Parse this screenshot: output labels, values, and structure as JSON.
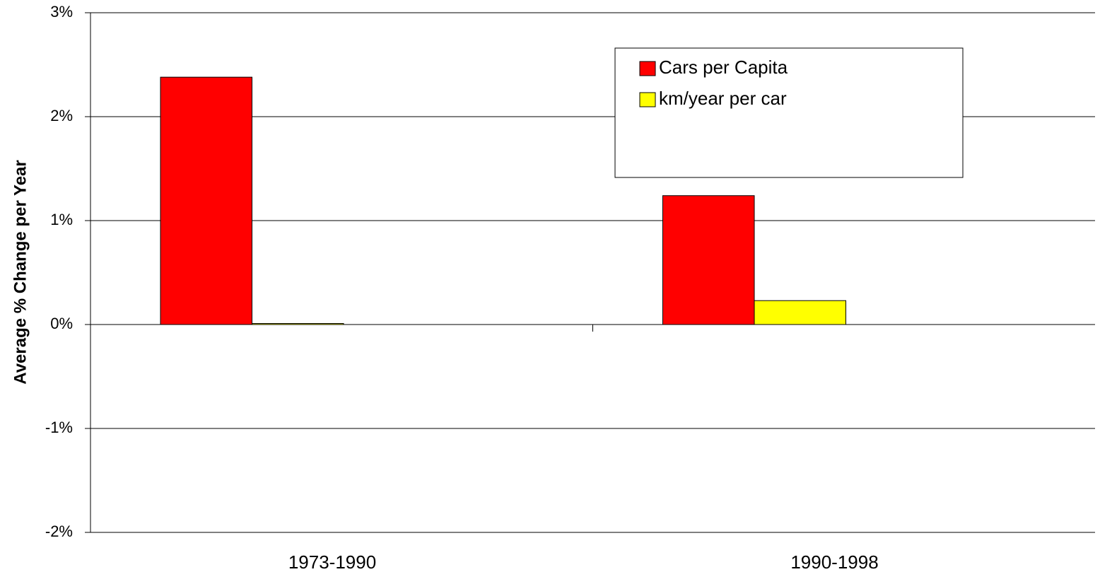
{
  "chart_data": {
    "type": "bar",
    "y_label": "Average % Change per Year",
    "categories": [
      "1973-1990",
      "1990-1998"
    ],
    "series": [
      {
        "name": "Cars per Capita",
        "color": "#ff0000",
        "values": [
          2.38,
          1.24
        ]
      },
      {
        "name": "km/year per car",
        "color": "#ffff00",
        "values": [
          0.01,
          0.23
        ]
      }
    ],
    "ylim": [
      -2,
      3
    ],
    "yticks": [
      {
        "value": -2,
        "label": "-2%"
      },
      {
        "value": -1,
        "label": "-1%"
      },
      {
        "value": 0,
        "label": "0%"
      },
      {
        "value": 1,
        "label": "1%"
      },
      {
        "value": 2,
        "label": "2%"
      },
      {
        "value": 3,
        "label": "3%"
      }
    ],
    "grid": true,
    "legend": "top-right"
  }
}
